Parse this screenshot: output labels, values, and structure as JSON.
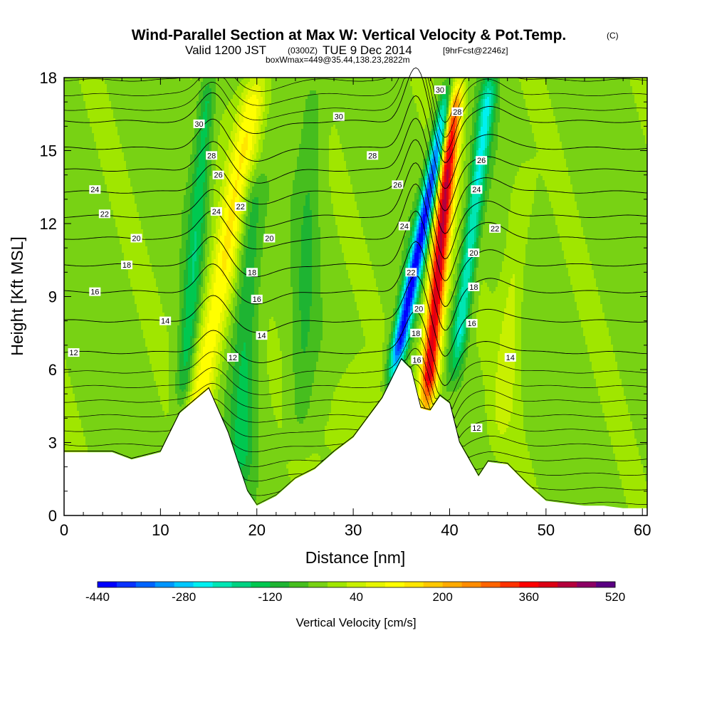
{
  "title": {
    "main": "Wind-Parallel Section at Max W: Vertical Velocity & Pot.Temp.",
    "copyright": "(C)",
    "valid_prefix": "Valid 1200 JST",
    "valid_utc": "(0300Z)",
    "valid_date": "TUE 9 Dec 2014",
    "forecast": "[9hrFcst@2246z]",
    "box": "boxWmax=449@35.44,138.23,2822m"
  },
  "chart_data": {
    "type": "heatmap",
    "xlabel": "Distance [nm]",
    "ylabel": "Height [Kft MSL]",
    "xlim": [
      0,
      60.5
    ],
    "ylim": [
      0,
      18
    ],
    "x_ticks": [
      "0",
      "10",
      "20",
      "30",
      "40",
      "50",
      "60"
    ],
    "y_ticks": [
      "0",
      "3",
      "6",
      "9",
      "12",
      "15",
      "18"
    ],
    "colorbar": {
      "label": "Vertical Velocity [cm/s]",
      "min": -440,
      "max": 520,
      "step": 40,
      "tick_labels": [
        "-440",
        "-280",
        "-120",
        "40",
        "200",
        "360",
        "520"
      ],
      "colors": [
        "#0000ff",
        "#0a32ff",
        "#0064ff",
        "#0096ff",
        "#00c8ff",
        "#00f0f0",
        "#00e6b4",
        "#00d282",
        "#00c850",
        "#1eb432",
        "#46be1e",
        "#78d214",
        "#a0e600",
        "#c8f000",
        "#e6f500",
        "#ffff00",
        "#ffe600",
        "#ffc800",
        "#ffaa00",
        "#ff8c00",
        "#ff6400",
        "#ff3200",
        "#ff0000",
        "#dc0014",
        "#b4003c",
        "#8c0064",
        "#5a0082"
      ]
    },
    "terrain": {
      "x": [
        0,
        5,
        7,
        10,
        12,
        15,
        17,
        19,
        20,
        22,
        24,
        26,
        28,
        30,
        33,
        35,
        36,
        37,
        38,
        39,
        40,
        41,
        43,
        44,
        46,
        48,
        50,
        52,
        54,
        56,
        58,
        60.5
      ],
      "height": [
        2.6,
        2.6,
        2.3,
        2.6,
        4.2,
        5.2,
        3.4,
        1.0,
        0.4,
        0.8,
        1.5,
        1.9,
        2.6,
        3.2,
        4.8,
        6.4,
        6.0,
        4.4,
        4.3,
        4.9,
        4.6,
        3.0,
        1.6,
        2.2,
        2.1,
        1.3,
        0.6,
        0.5,
        0.4,
        0.4,
        0.3,
        0.3
      ]
    },
    "updrafts": [
      {
        "x": 16.0,
        "tilt": 0.45,
        "width": 1.4,
        "peak": 180,
        "ybot": 3.0,
        "ytop": 18
      },
      {
        "x": 38.6,
        "tilt": 0.22,
        "width": 0.9,
        "peak": 500,
        "ybot": 4.2,
        "ytop": 18
      },
      {
        "x": 46.5,
        "tilt": 0.2,
        "width": 1.2,
        "peak": 70,
        "ybot": 3.0,
        "ytop": 14
      },
      {
        "x": 30.5,
        "tilt": 0.1,
        "width": 3.0,
        "peak": 60,
        "ybot": 2.0,
        "ytop": 6
      }
    ],
    "downdrafts": [
      {
        "x": 13.2,
        "tilt": 0.2,
        "width": 0.9,
        "peak": -130,
        "ybot": 4.0,
        "ytop": 18
      },
      {
        "x": 35.8,
        "tilt": 0.5,
        "width": 0.8,
        "peak": -440,
        "ybot": 5.5,
        "ytop": 18
      },
      {
        "x": 41.5,
        "tilt": 0.3,
        "width": 0.8,
        "peak": -230,
        "ybot": 6.0,
        "ytop": 18
      },
      {
        "x": 19.0,
        "tilt": 0.1,
        "width": 1.3,
        "peak": -110,
        "ybot": 1.0,
        "ytop": 14
      },
      {
        "x": 25.0,
        "tilt": 0.1,
        "width": 1.2,
        "peak": -60,
        "ybot": 3.0,
        "ytop": 18
      }
    ],
    "isentropes": {
      "values": [
        12,
        14,
        16,
        18,
        20,
        22,
        24,
        26,
        28,
        30
      ],
      "base_height": [
        6.7,
        8.0,
        9.2,
        10.3,
        11.4,
        12.3,
        13.3,
        14.2,
        15.1,
        16.2
      ]
    },
    "contour_labels": [
      {
        "text": "12",
        "x": 1.0,
        "y": 6.7
      },
      {
        "text": "14",
        "x": 10.5,
        "y": 8.0
      },
      {
        "text": "16",
        "x": 3.2,
        "y": 9.2
      },
      {
        "text": "18",
        "x": 6.5,
        "y": 10.3
      },
      {
        "text": "20",
        "x": 7.5,
        "y": 11.4
      },
      {
        "text": "22",
        "x": 4.2,
        "y": 12.4
      },
      {
        "text": "24",
        "x": 3.2,
        "y": 13.4
      },
      {
        "text": "30",
        "x": 14.0,
        "y": 16.1
      },
      {
        "text": "28",
        "x": 15.3,
        "y": 14.8
      },
      {
        "text": "26",
        "x": 16.0,
        "y": 14.0
      },
      {
        "text": "24",
        "x": 15.8,
        "y": 12.5
      },
      {
        "text": "22",
        "x": 18.3,
        "y": 12.7
      },
      {
        "text": "20",
        "x": 21.3,
        "y": 11.4
      },
      {
        "text": "18",
        "x": 19.5,
        "y": 10.0
      },
      {
        "text": "16",
        "x": 20.0,
        "y": 8.9
      },
      {
        "text": "14",
        "x": 20.5,
        "y": 7.4
      },
      {
        "text": "12",
        "x": 17.5,
        "y": 6.5
      },
      {
        "text": "30",
        "x": 28.5,
        "y": 16.4
      },
      {
        "text": "28",
        "x": 32.0,
        "y": 14.8
      },
      {
        "text": "26",
        "x": 34.6,
        "y": 13.6
      },
      {
        "text": "24",
        "x": 35.3,
        "y": 11.9
      },
      {
        "text": "22",
        "x": 36.0,
        "y": 10.0
      },
      {
        "text": "20",
        "x": 36.8,
        "y": 8.5
      },
      {
        "text": "18",
        "x": 36.5,
        "y": 7.5
      },
      {
        "text": "16",
        "x": 36.6,
        "y": 6.4
      },
      {
        "text": "30",
        "x": 39.0,
        "y": 17.5
      },
      {
        "text": "28",
        "x": 40.8,
        "y": 16.6
      },
      {
        "text": "26",
        "x": 43.3,
        "y": 14.6
      },
      {
        "text": "24",
        "x": 42.8,
        "y": 13.4
      },
      {
        "text": "22",
        "x": 44.7,
        "y": 11.8
      },
      {
        "text": "20",
        "x": 42.5,
        "y": 10.8
      },
      {
        "text": "18",
        "x": 42.5,
        "y": 9.4
      },
      {
        "text": "16",
        "x": 42.3,
        "y": 7.9
      },
      {
        "text": "14",
        "x": 46.3,
        "y": 6.5
      },
      {
        "text": "12",
        "x": 42.8,
        "y": 3.6
      }
    ]
  }
}
